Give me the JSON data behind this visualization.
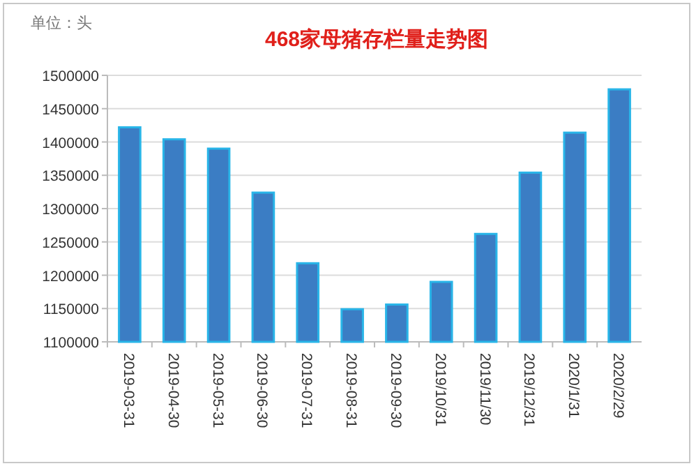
{
  "chart_data": {
    "type": "bar",
    "title": "468家母猪存栏量走势图",
    "ylabel": "单位：头",
    "categories": [
      "2019-03-31",
      "2019-04-30",
      "2019-05-31",
      "2019-06-30",
      "2019-07-31",
      "2019-08-31",
      "2019-09-30",
      "2019/10/31",
      "2019/11/30",
      "2019/12/31",
      "2020/1/31",
      "2020/2/29"
    ],
    "values": [
      1422000,
      1404000,
      1390000,
      1324000,
      1218000,
      1149000,
      1156000,
      1190000,
      1262000,
      1354000,
      1414000,
      1479000
    ],
    "color": "#3b7dc4",
    "ylim": [
      1100000,
      1500000
    ],
    "yticks": [
      1100000,
      1150000,
      1200000,
      1250000,
      1300000,
      1350000,
      1400000,
      1450000,
      1500000
    ],
    "grid": "y"
  }
}
